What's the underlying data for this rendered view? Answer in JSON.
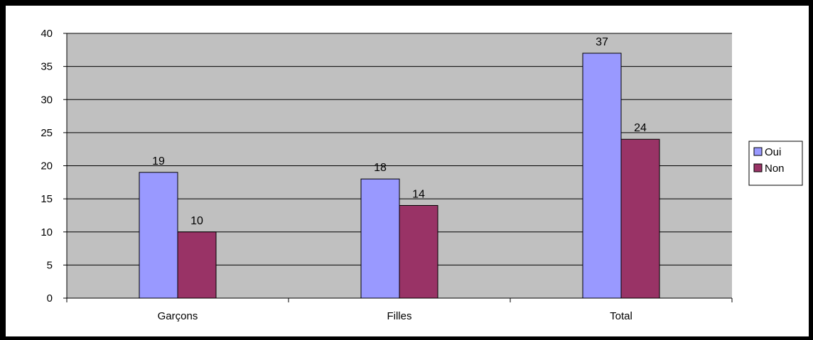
{
  "chart_data": {
    "type": "bar",
    "categories": [
      "Garçons",
      "Filles",
      "Total"
    ],
    "series": [
      {
        "name": "Oui",
        "values": [
          19,
          18,
          37
        ],
        "color": "#9999ff"
      },
      {
        "name": "Non",
        "values": [
          10,
          14,
          24
        ],
        "color": "#993366"
      }
    ],
    "ylim": [
      0,
      40
    ],
    "yticks": [
      0,
      5,
      10,
      15,
      20,
      25,
      30,
      35,
      40
    ],
    "grid": true,
    "legend_position": "right",
    "plot_background": "#c0c0c0"
  }
}
